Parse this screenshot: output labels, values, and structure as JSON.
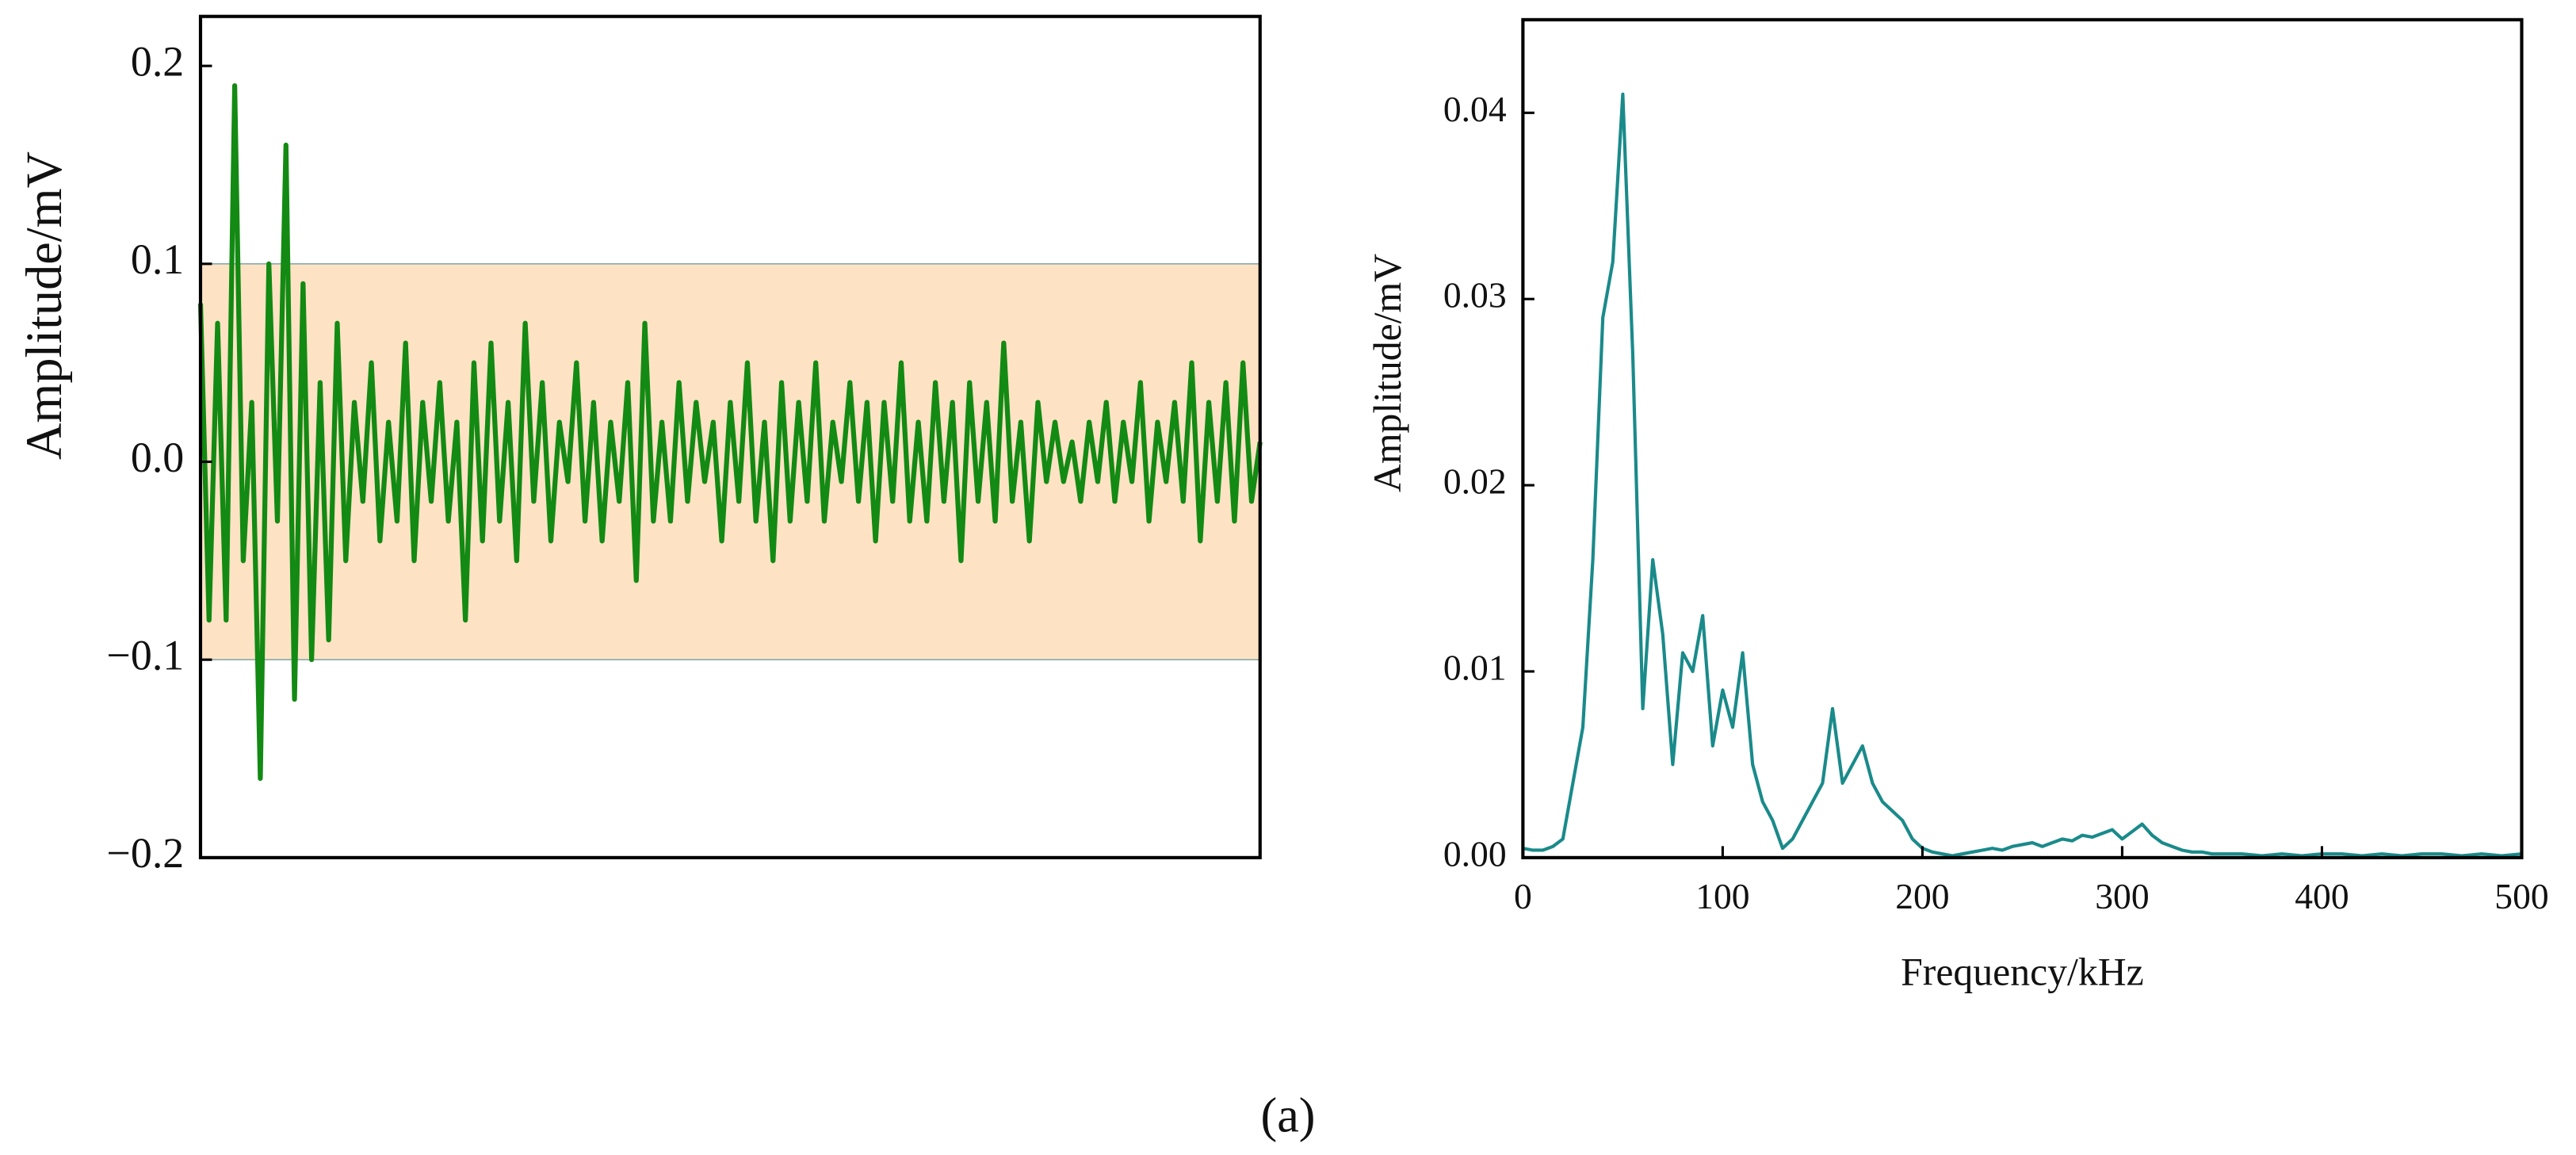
{
  "chart_data": [
    {
      "type": "line",
      "y_label": "Amplitude/mV",
      "color": "#138a13",
      "shaded_range": [
        -0.1,
        0.1
      ],
      "shade_color": "#fde3c4",
      "ylim": [
        -0.2,
        0.225
      ],
      "yticks": [
        -0.2,
        -0.1,
        0,
        0.1,
        0.2
      ],
      "ytick_labels": [
        "−0.2",
        "−0.1",
        "0.0",
        "0.1",
        "0.2"
      ],
      "values": [
        0.08,
        -0.08,
        0.07,
        -0.08,
        0.19,
        -0.05,
        0.03,
        -0.16,
        0.1,
        -0.03,
        0.16,
        -0.12,
        0.09,
        -0.1,
        0.04,
        -0.09,
        0.07,
        -0.05,
        0.03,
        -0.02,
        0.05,
        -0.04,
        0.02,
        -0.03,
        0.06,
        -0.05,
        0.03,
        -0.02,
        0.04,
        -0.03,
        0.02,
        -0.08,
        0.05,
        -0.04,
        0.06,
        -0.03,
        0.03,
        -0.05,
        0.07,
        -0.02,
        0.04,
        -0.04,
        0.02,
        -0.01,
        0.05,
        -0.03,
        0.03,
        -0.04,
        0.02,
        -0.02,
        0.04,
        -0.06,
        0.07,
        -0.03,
        0.02,
        -0.03,
        0.04,
        -0.02,
        0.03,
        -0.01,
        0.02,
        -0.04,
        0.03,
        -0.02,
        0.05,
        -0.03,
        0.02,
        -0.05,
        0.04,
        -0.03,
        0.03,
        -0.02,
        0.05,
        -0.03,
        0.02,
        -0.01,
        0.04,
        -0.02,
        0.03,
        -0.04,
        0.03,
        -0.02,
        0.05,
        -0.03,
        0.02,
        -0.03,
        0.04,
        -0.02,
        0.03,
        -0.05,
        0.04,
        -0.02,
        0.03,
        -0.03,
        0.06,
        -0.02,
        0.02,
        -0.04,
        0.03,
        -0.01,
        0.02,
        -0.01,
        0.01,
        -0.02,
        0.02,
        -0.01,
        0.03,
        -0.02,
        0.02,
        -0.01,
        0.04,
        -0.03,
        0.02,
        -0.01,
        0.03,
        -0.02,
        0.05,
        -0.04,
        0.03,
        -0.02,
        0.04,
        -0.03,
        0.05,
        -0.02,
        0.01
      ]
    },
    {
      "type": "line",
      "x_label": "Frequency/kHz",
      "y_label": "Amplitude/mV",
      "color": "#1a8a8a",
      "xlim": [
        0,
        500
      ],
      "xticks": [
        0,
        100,
        200,
        300,
        400,
        500
      ],
      "ylim": [
        0,
        0.045
      ],
      "yticks": [
        {
          "value": 0,
          "label": "0.00"
        },
        {
          "value": 0.01,
          "label": "0.01"
        },
        {
          "value": 0.02,
          "label": "0.02"
        },
        {
          "value": 0.03,
          "label": "0.03"
        },
        {
          "value": 0.04,
          "label": "0.04"
        }
      ],
      "x": [
        0,
        5,
        10,
        15,
        20,
        25,
        30,
        35,
        40,
        45,
        50,
        55,
        60,
        65,
        70,
        75,
        80,
        85,
        90,
        95,
        100,
        105,
        110,
        115,
        120,
        125,
        130,
        135,
        140,
        145,
        150,
        155,
        160,
        165,
        170,
        175,
        180,
        185,
        190,
        195,
        200,
        205,
        210,
        215,
        220,
        225,
        230,
        235,
        240,
        245,
        250,
        255,
        260,
        265,
        270,
        275,
        280,
        285,
        290,
        295,
        300,
        305,
        310,
        315,
        320,
        325,
        330,
        335,
        340,
        345,
        350,
        360,
        370,
        380,
        390,
        400,
        410,
        420,
        430,
        440,
        450,
        460,
        470,
        480,
        490,
        500
      ],
      "values": [
        0.0005,
        0.0004,
        0.0004,
        0.0006,
        0.001,
        0.004,
        0.007,
        0.016,
        0.029,
        0.032,
        0.041,
        0.027,
        0.008,
        0.016,
        0.012,
        0.005,
        0.011,
        0.01,
        0.013,
        0.006,
        0.009,
        0.007,
        0.011,
        0.005,
        0.003,
        0.002,
        0.0005,
        0.001,
        0.002,
        0.003,
        0.004,
        0.008,
        0.004,
        0.005,
        0.006,
        0.004,
        0.003,
        0.0025,
        0.002,
        0.001,
        0.0005,
        0.0003,
        0.0002,
        0.0001,
        0.0002,
        0.0003,
        0.0004,
        0.0005,
        0.0004,
        0.0006,
        0.0007,
        0.0008,
        0.0006,
        0.0008,
        0.001,
        0.0009,
        0.0012,
        0.0011,
        0.0013,
        0.0015,
        0.001,
        0.0014,
        0.0018,
        0.0012,
        0.0008,
        0.0006,
        0.0004,
        0.0003,
        0.0003,
        0.0002,
        0.0002,
        0.0002,
        0.0001,
        0.0002,
        0.0001,
        0.0002,
        0.0002,
        0.0001,
        0.0002,
        0.0001,
        0.0002,
        0.0002,
        0.0001,
        0.0002,
        0.0001,
        0.0002
      ]
    }
  ],
  "caption": "(a)"
}
